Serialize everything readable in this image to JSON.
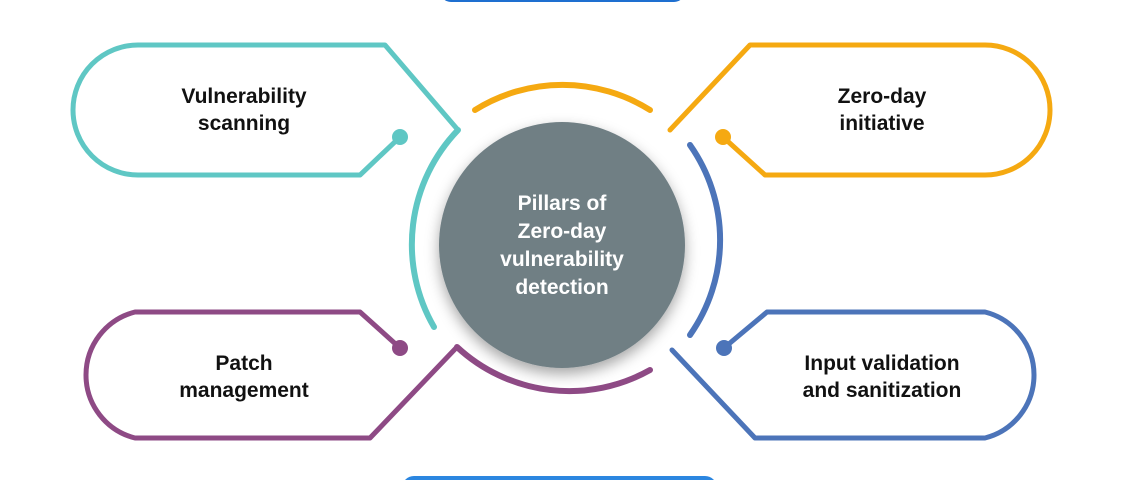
{
  "center": {
    "lines": [
      "Pillars of",
      "Zero-day",
      "vulnerability",
      "detection"
    ],
    "fill": "#707f84"
  },
  "pillars": [
    {
      "lines": [
        "Vulnerability",
        "scanning"
      ],
      "color": "#5fc7c4"
    },
    {
      "lines": [
        "Zero-day",
        "initiative"
      ],
      "color": "#f5a911"
    },
    {
      "lines": [
        "Patch",
        "management"
      ],
      "color": "#8e4a85"
    },
    {
      "lines": [
        "Input validation",
        "and sanitization"
      ],
      "color": "#4c74b9"
    }
  ],
  "accent_bars": {
    "top_color": "#1e6fd0",
    "bottom_color": "#2b86e0"
  }
}
